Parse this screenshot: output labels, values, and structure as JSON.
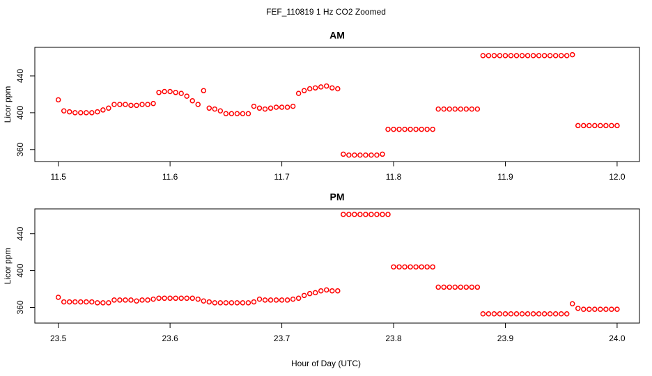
{
  "title": "FEF_110819  1 Hz CO2 Zoomed",
  "xlabel": "Hour of Day (UTC)",
  "chart_data": [
    {
      "type": "scatter",
      "title": "AM",
      "ylabel": "Licor ppm",
      "color": "#ff0000",
      "xlim": [
        11.479,
        12.02
      ],
      "ylim": [
        347,
        471
      ],
      "xticks": [
        11.5,
        11.6,
        11.7,
        11.8,
        11.9,
        {
          "value": 12,
          "label": "12.0"
        }
      ],
      "yticks": [
        360,
        400,
        440
      ],
      "x": [
        11.5,
        11.505,
        11.51,
        11.515,
        11.52,
        11.525,
        11.53,
        11.535,
        11.54,
        11.545,
        11.55,
        11.555,
        11.56,
        11.565,
        11.57,
        11.575,
        11.58,
        11.585,
        11.59,
        11.595,
        11.6,
        11.605,
        11.61,
        11.615,
        11.62,
        11.625,
        11.63,
        11.635,
        11.64,
        11.645,
        11.65,
        11.655,
        11.66,
        11.665,
        11.67,
        11.675,
        11.68,
        11.685,
        11.69,
        11.695,
        11.7,
        11.705,
        11.71,
        11.715,
        11.72,
        11.725,
        11.73,
        11.735,
        11.74,
        11.745,
        11.75,
        11.755,
        11.76,
        11.765,
        11.77,
        11.775,
        11.78,
        11.785,
        11.79,
        11.795,
        11.8,
        11.805,
        11.81,
        11.815,
        11.82,
        11.825,
        11.83,
        11.835,
        11.84,
        11.845,
        11.85,
        11.855,
        11.86,
        11.865,
        11.87,
        11.875,
        11.88,
        11.885,
        11.89,
        11.895,
        11.9,
        11.905,
        11.91,
        11.915,
        11.92,
        11.925,
        11.93,
        11.935,
        11.94,
        11.945,
        11.95,
        11.955,
        11.96,
        11.965,
        11.97,
        11.975,
        11.98,
        11.985,
        11.99,
        11.995,
        12
      ],
      "values": [
        414,
        402,
        401,
        400,
        400,
        400,
        400,
        401,
        403,
        405,
        409,
        409,
        409,
        408,
        408,
        409,
        409,
        410,
        422,
        423,
        423,
        422,
        421,
        418,
        413,
        409,
        424,
        405,
        404,
        402,
        399,
        399,
        399,
        399,
        399,
        407,
        405,
        404,
        405,
        406,
        406,
        406,
        407,
        421,
        424,
        426,
        427,
        428,
        429,
        427,
        426,
        355,
        354,
        354,
        354,
        354,
        354,
        354,
        355,
        382,
        382,
        382,
        382,
        382,
        382,
        382,
        382,
        382,
        404,
        404,
        404,
        404,
        404,
        404,
        404,
        404,
        462,
        462,
        462,
        462,
        462,
        462,
        462,
        462,
        462,
        462,
        462,
        462,
        462,
        462,
        462,
        462,
        463,
        386,
        386,
        386,
        386,
        386,
        386,
        386,
        386
      ]
    },
    {
      "type": "scatter",
      "title": "PM",
      "ylabel": "Licor ppm",
      "color": "#ff0000",
      "xlim": [
        23.479,
        24.02
      ],
      "ylim": [
        343,
        467
      ],
      "xticks": [
        23.5,
        23.6,
        23.7,
        23.8,
        23.9,
        {
          "value": 24,
          "label": "24.0"
        }
      ],
      "yticks": [
        360,
        400,
        440
      ],
      "x": [
        23.5,
        23.505,
        23.51,
        23.515,
        23.52,
        23.525,
        23.53,
        23.535,
        23.54,
        23.545,
        23.55,
        23.555,
        23.56,
        23.565,
        23.57,
        23.575,
        23.58,
        23.585,
        23.59,
        23.595,
        23.6,
        23.605,
        23.61,
        23.615,
        23.62,
        23.625,
        23.63,
        23.635,
        23.64,
        23.645,
        23.65,
        23.655,
        23.66,
        23.665,
        23.67,
        23.675,
        23.68,
        23.685,
        23.69,
        23.695,
        23.7,
        23.705,
        23.71,
        23.715,
        23.72,
        23.725,
        23.73,
        23.735,
        23.74,
        23.745,
        23.75,
        23.755,
        23.76,
        23.765,
        23.77,
        23.775,
        23.78,
        23.785,
        23.79,
        23.795,
        23.8,
        23.805,
        23.81,
        23.815,
        23.82,
        23.825,
        23.83,
        23.835,
        23.84,
        23.845,
        23.85,
        23.855,
        23.86,
        23.865,
        23.87,
        23.875,
        23.88,
        23.885,
        23.89,
        23.895,
        23.9,
        23.905,
        23.91,
        23.915,
        23.92,
        23.925,
        23.93,
        23.935,
        23.94,
        23.945,
        23.95,
        23.955,
        23.96,
        23.965,
        23.97,
        23.975,
        23.98,
        23.985,
        23.99,
        23.995,
        24
      ],
      "values": [
        371,
        366,
        366,
        366,
        366,
        366,
        366,
        365,
        365,
        365,
        368,
        368,
        368,
        368,
        367,
        368,
        368,
        369,
        370,
        370,
        370,
        370,
        370,
        370,
        370,
        369,
        367,
        366,
        365,
        365,
        365,
        365,
        365,
        365,
        365,
        366,
        369,
        368,
        368,
        368,
        368,
        368,
        369,
        370,
        373,
        375,
        376,
        378,
        379,
        378,
        378,
        461,
        461,
        461,
        461,
        461,
        461,
        461,
        461,
        461,
        404,
        404,
        404,
        404,
        404,
        404,
        404,
        404,
        382,
        382,
        382,
        382,
        382,
        382,
        382,
        382,
        353,
        353,
        353,
        353,
        353,
        353,
        353,
        353,
        353,
        353,
        353,
        353,
        353,
        353,
        353,
        353,
        364,
        359,
        358,
        358,
        358,
        358,
        358,
        358,
        358
      ]
    }
  ]
}
